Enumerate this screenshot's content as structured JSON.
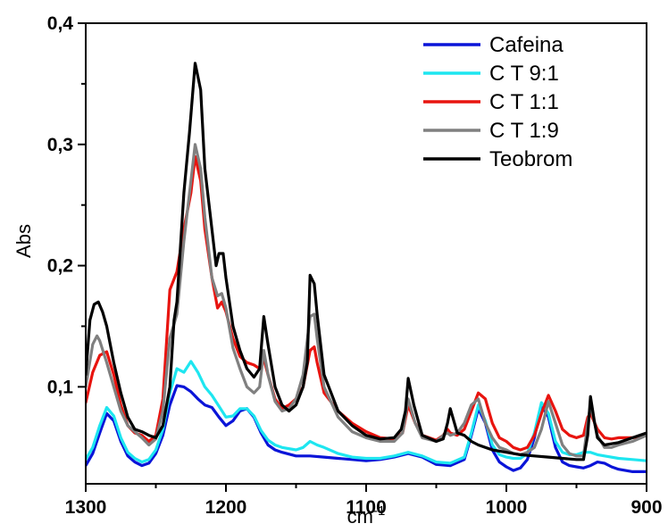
{
  "chart_data": {
    "type": "line",
    "title": "",
    "xlabel": "cm",
    "xlabel_superscript": "-1",
    "ylabel": "Abs",
    "xlim": [
      1300,
      900
    ],
    "ylim": [
      0.02,
      0.4
    ],
    "x_reversed": true,
    "x_ticks": [
      1300,
      1200,
      1100,
      1000,
      900
    ],
    "x_tick_labels": [
      "1300",
      "1200",
      "1100",
      "1000",
      "900"
    ],
    "y_ticks": [
      0.1,
      0.2,
      0.3,
      0.4
    ],
    "y_tick_labels": [
      "0,1",
      "0,2",
      "0,3",
      "0,4"
    ],
    "grid": false,
    "legend_position": "top-right",
    "series": [
      {
        "name": "Cafeina",
        "color": "#0a14d8",
        "x": [
          1300,
          1295,
          1290,
          1285,
          1280,
          1275,
          1270,
          1265,
          1260,
          1255,
          1250,
          1245,
          1240,
          1235,
          1230,
          1225,
          1220,
          1215,
          1210,
          1205,
          1200,
          1195,
          1190,
          1185,
          1180,
          1175,
          1170,
          1165,
          1160,
          1150,
          1140,
          1130,
          1120,
          1110,
          1100,
          1090,
          1080,
          1070,
          1060,
          1050,
          1040,
          1030,
          1025,
          1020,
          1015,
          1010,
          1005,
          1000,
          995,
          990,
          985,
          980,
          975,
          970,
          965,
          960,
          955,
          950,
          945,
          940,
          935,
          930,
          925,
          920,
          910,
          900
        ],
        "y": [
          0.035,
          0.045,
          0.062,
          0.078,
          0.072,
          0.055,
          0.043,
          0.038,
          0.035,
          0.037,
          0.045,
          0.06,
          0.085,
          0.101,
          0.1,
          0.096,
          0.09,
          0.085,
          0.083,
          0.075,
          0.068,
          0.072,
          0.08,
          0.082,
          0.075,
          0.062,
          0.052,
          0.048,
          0.046,
          0.043,
          0.043,
          0.042,
          0.041,
          0.04,
          0.039,
          0.04,
          0.042,
          0.045,
          0.042,
          0.036,
          0.035,
          0.04,
          0.06,
          0.082,
          0.07,
          0.048,
          0.038,
          0.034,
          0.031,
          0.033,
          0.04,
          0.058,
          0.085,
          0.075,
          0.05,
          0.038,
          0.035,
          0.034,
          0.033,
          0.035,
          0.038,
          0.037,
          0.034,
          0.032,
          0.03,
          0.03
        ]
      },
      {
        "name": "C T 9:1",
        "color": "#1ee6f0",
        "x": [
          1300,
          1295,
          1290,
          1285,
          1280,
          1275,
          1270,
          1265,
          1260,
          1255,
          1250,
          1245,
          1240,
          1235,
          1230,
          1225,
          1220,
          1215,
          1210,
          1205,
          1200,
          1195,
          1190,
          1185,
          1180,
          1175,
          1170,
          1165,
          1160,
          1150,
          1145,
          1140,
          1135,
          1130,
          1120,
          1110,
          1100,
          1090,
          1080,
          1070,
          1060,
          1050,
          1040,
          1030,
          1025,
          1020,
          1015,
          1010,
          1005,
          1000,
          995,
          990,
          985,
          980,
          975,
          970,
          965,
          960,
          955,
          950,
          945,
          940,
          935,
          930,
          920,
          910,
          900
        ],
        "y": [
          0.04,
          0.05,
          0.068,
          0.083,
          0.076,
          0.058,
          0.046,
          0.041,
          0.038,
          0.04,
          0.048,
          0.065,
          0.095,
          0.115,
          0.112,
          0.121,
          0.112,
          0.1,
          0.093,
          0.084,
          0.075,
          0.076,
          0.082,
          0.082,
          0.076,
          0.064,
          0.056,
          0.052,
          0.05,
          0.048,
          0.05,
          0.055,
          0.052,
          0.05,
          0.045,
          0.042,
          0.041,
          0.041,
          0.043,
          0.046,
          0.043,
          0.038,
          0.037,
          0.042,
          0.062,
          0.085,
          0.072,
          0.052,
          0.044,
          0.042,
          0.041,
          0.041,
          0.045,
          0.062,
          0.087,
          0.078,
          0.055,
          0.046,
          0.044,
          0.044,
          0.046,
          0.046,
          0.044,
          0.043,
          0.041,
          0.04,
          0.039
        ]
      },
      {
        "name": "C T 1:1",
        "color": "#e8140f",
        "x": [
          1300,
          1295,
          1290,
          1285,
          1280,
          1275,
          1270,
          1265,
          1260,
          1255,
          1250,
          1245,
          1240,
          1235,
          1230,
          1225,
          1222,
          1218,
          1215,
          1210,
          1206,
          1203,
          1200,
          1195,
          1190,
          1185,
          1180,
          1176,
          1173,
          1170,
          1165,
          1160,
          1155,
          1150,
          1145,
          1140,
          1137,
          1135,
          1130,
          1120,
          1110,
          1100,
          1090,
          1080,
          1074,
          1070,
          1065,
          1060,
          1050,
          1045,
          1042,
          1040,
          1035,
          1030,
          1025,
          1020,
          1015,
          1010,
          1005,
          1000,
          995,
          990,
          985,
          980,
          975,
          970,
          965,
          960,
          955,
          950,
          945,
          942,
          940,
          935,
          930,
          925,
          920,
          910,
          900
        ],
        "y": [
          0.087,
          0.112,
          0.126,
          0.129,
          0.11,
          0.085,
          0.068,
          0.062,
          0.06,
          0.055,
          0.06,
          0.09,
          0.18,
          0.195,
          0.23,
          0.26,
          0.29,
          0.27,
          0.23,
          0.19,
          0.165,
          0.17,
          0.162,
          0.14,
          0.125,
          0.12,
          0.118,
          0.115,
          0.123,
          0.11,
          0.09,
          0.082,
          0.085,
          0.09,
          0.1,
          0.13,
          0.133,
          0.12,
          0.095,
          0.08,
          0.07,
          0.063,
          0.058,
          0.057,
          0.062,
          0.085,
          0.07,
          0.06,
          0.056,
          0.06,
          0.065,
          0.062,
          0.06,
          0.065,
          0.08,
          0.095,
          0.09,
          0.07,
          0.058,
          0.055,
          0.05,
          0.048,
          0.05,
          0.06,
          0.078,
          0.093,
          0.08,
          0.065,
          0.06,
          0.058,
          0.06,
          0.075,
          0.078,
          0.065,
          0.058,
          0.057,
          0.058,
          0.058,
          0.06
        ]
      },
      {
        "name": "C T 1:9",
        "color": "#808080",
        "x": [
          1300,
          1295,
          1292,
          1290,
          1285,
          1280,
          1275,
          1270,
          1265,
          1260,
          1255,
          1250,
          1245,
          1240,
          1235,
          1230,
          1225,
          1222,
          1218,
          1215,
          1210,
          1206,
          1203,
          1200,
          1195,
          1190,
          1185,
          1180,
          1176,
          1173,
          1170,
          1165,
          1160,
          1155,
          1150,
          1145,
          1140,
          1137,
          1135,
          1130,
          1120,
          1110,
          1100,
          1090,
          1080,
          1074,
          1070,
          1065,
          1060,
          1050,
          1045,
          1042,
          1040,
          1035,
          1030,
          1025,
          1020,
          1015,
          1010,
          1005,
          1000,
          995,
          990,
          985,
          980,
          975,
          970,
          965,
          960,
          955,
          950,
          945,
          942,
          940,
          935,
          930,
          925,
          920,
          910,
          900
        ],
        "y": [
          0.1,
          0.135,
          0.142,
          0.138,
          0.12,
          0.1,
          0.08,
          0.068,
          0.063,
          0.058,
          0.052,
          0.057,
          0.08,
          0.14,
          0.16,
          0.22,
          0.27,
          0.3,
          0.28,
          0.24,
          0.19,
          0.175,
          0.177,
          0.165,
          0.132,
          0.115,
          0.1,
          0.095,
          0.1,
          0.13,
          0.11,
          0.088,
          0.08,
          0.082,
          0.09,
          0.11,
          0.158,
          0.16,
          0.14,
          0.1,
          0.075,
          0.063,
          0.058,
          0.055,
          0.055,
          0.062,
          0.09,
          0.07,
          0.058,
          0.055,
          0.06,
          0.062,
          0.06,
          0.062,
          0.07,
          0.085,
          0.09,
          0.07,
          0.058,
          0.05,
          0.048,
          0.045,
          0.044,
          0.046,
          0.05,
          0.065,
          0.088,
          0.07,
          0.052,
          0.045,
          0.043,
          0.043,
          0.07,
          0.085,
          0.06,
          0.05,
          0.05,
          0.052,
          0.055,
          0.06
        ]
      },
      {
        "name": "Teobrom",
        "color": "#000000",
        "x": [
          1300,
          1297,
          1294,
          1291,
          1288,
          1285,
          1280,
          1275,
          1270,
          1265,
          1260,
          1255,
          1250,
          1245,
          1240,
          1237,
          1235,
          1230,
          1226,
          1222,
          1218,
          1215,
          1210,
          1207,
          1205,
          1202,
          1200,
          1195,
          1190,
          1185,
          1180,
          1176,
          1173,
          1170,
          1165,
          1160,
          1155,
          1150,
          1145,
          1142,
          1140,
          1137,
          1135,
          1130,
          1120,
          1110,
          1100,
          1090,
          1080,
          1075,
          1072,
          1070,
          1066,
          1060,
          1050,
          1045,
          1042,
          1040,
          1037,
          1035,
          1030,
          1025,
          1020,
          1010,
          1000,
          990,
          980,
          970,
          960,
          950,
          945,
          942,
          940,
          937,
          935,
          930,
          920,
          910,
          900
        ],
        "y": [
          0.11,
          0.155,
          0.168,
          0.17,
          0.162,
          0.15,
          0.12,
          0.095,
          0.075,
          0.065,
          0.063,
          0.06,
          0.058,
          0.068,
          0.1,
          0.155,
          0.17,
          0.26,
          0.31,
          0.367,
          0.345,
          0.28,
          0.23,
          0.2,
          0.21,
          0.21,
          0.19,
          0.15,
          0.13,
          0.115,
          0.108,
          0.115,
          0.158,
          0.135,
          0.1,
          0.085,
          0.08,
          0.085,
          0.1,
          0.12,
          0.192,
          0.185,
          0.16,
          0.11,
          0.08,
          0.068,
          0.06,
          0.057,
          0.058,
          0.065,
          0.08,
          0.107,
          0.085,
          0.06,
          0.055,
          0.057,
          0.07,
          0.082,
          0.07,
          0.062,
          0.06,
          0.055,
          0.052,
          0.048,
          0.046,
          0.044,
          0.043,
          0.042,
          0.041,
          0.04,
          0.04,
          0.06,
          0.092,
          0.07,
          0.058,
          0.052,
          0.054,
          0.058,
          0.062
        ]
      }
    ]
  }
}
